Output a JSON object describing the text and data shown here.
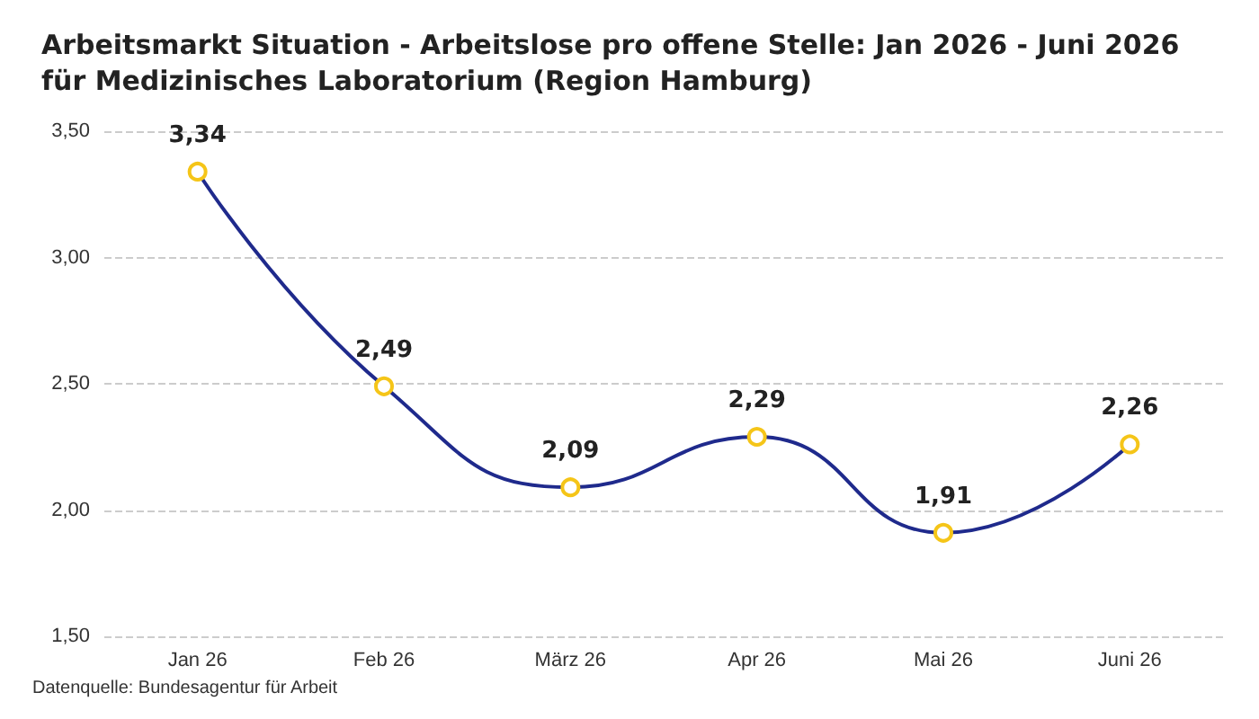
{
  "chart_data": {
    "type": "line",
    "title": "Arbeitsmarkt Situation - Arbeitslose pro offene Stelle: Jan 2026 - Juni 2026 für Medizinisches Laboratorium (Region Hamburg)",
    "categories": [
      "Jan 26",
      "Feb 26",
      "März 26",
      "Apr 26",
      "Mai 26",
      "Juni 26"
    ],
    "series": [
      {
        "color": "#1f2a8c",
        "colors": [
          "#f5c518",
          "#f5c518",
          "#f5c518",
          "#f5c518",
          "#f5c518",
          "#f5c518"
        ],
        "values": [
          3.34,
          2.49,
          2.09,
          2.29,
          1.91,
          2.26
        ],
        "value_labels": [
          "3,34",
          "2,49",
          "2,09",
          "2,29",
          "1,91",
          "2,26"
        ]
      }
    ],
    "ylim": [
      1.5,
      3.5
    ],
    "yticks": [
      {
        "value": 1.5,
        "label": "1,50"
      },
      {
        "value": 2,
        "label": "2,00"
      },
      {
        "value": 2.5,
        "label": "2,50"
      },
      {
        "value": 3,
        "label": "3,00"
      },
      {
        "value": 3.5,
        "label": "3,50"
      }
    ],
    "grid": "y",
    "marker": "circle",
    "line_style": "solid",
    "annotations": [
      "Datenquelle: Bundesagentur für Arbeit"
    ]
  }
}
